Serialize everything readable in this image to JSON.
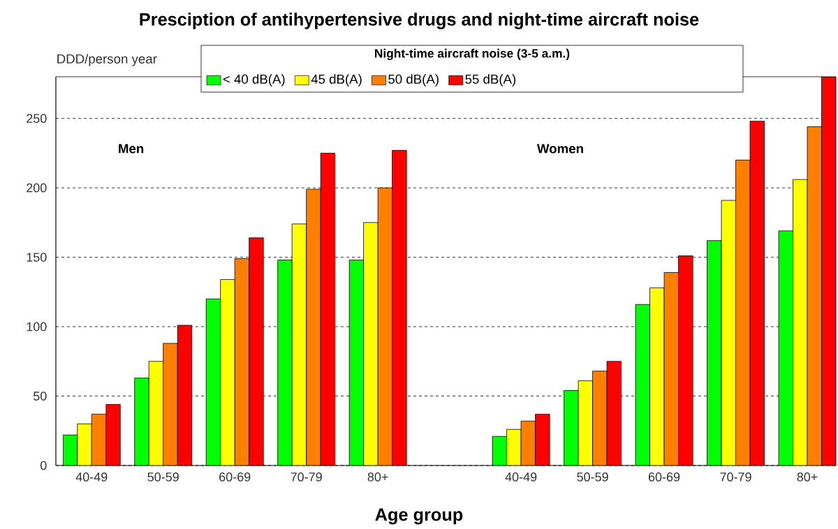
{
  "chart_data": {
    "type": "bar",
    "title": "Presciption of antihypertensive drugs and night-time aircraft noise",
    "xlabel": "Age group",
    "ylabel": "DDD/person year",
    "legend_title": "Night-time aircraft noise (3-5 a.m.)",
    "categories": [
      "40-49",
      "50-59",
      "60-69",
      "70-79",
      "80+",
      null,
      "40-49",
      "50-59",
      "60-69",
      "70-79",
      "80+"
    ],
    "series": [
      {
        "name": "< 40 dB(A)",
        "color": "#00ff00",
        "values": [
          22,
          63,
          120,
          148,
          148,
          null,
          21,
          54,
          116,
          162,
          169
        ]
      },
      {
        "name": "45 dB(A)",
        "color": "#ffff00",
        "values": [
          30,
          75,
          134,
          174,
          175,
          null,
          26,
          61,
          128,
          191,
          206
        ]
      },
      {
        "name": "50 dB(A)",
        "color": "#ff8000",
        "values": [
          37,
          88,
          149,
          199,
          200,
          null,
          32,
          68,
          139,
          220,
          244
        ]
      },
      {
        "name": "55 dB(A)",
        "color": "#ff0000",
        "values": [
          44,
          101,
          164,
          225,
          227,
          null,
          37,
          75,
          151,
          248,
          280
        ]
      }
    ],
    "annotations": [
      "Men",
      "Women"
    ],
    "ylim": [
      0,
      280
    ],
    "yticks": [
      0,
      50,
      100,
      150,
      200,
      250
    ],
    "grid": "y",
    "legend": "top"
  }
}
